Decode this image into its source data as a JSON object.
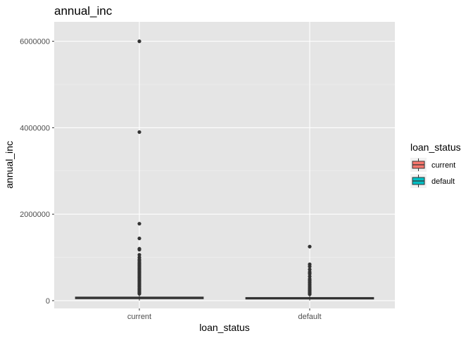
{
  "chart_data": {
    "type": "boxplot",
    "title": "annual_inc",
    "xlabel": "loan_status",
    "ylabel": "annual_inc",
    "categories": [
      "current",
      "default"
    ],
    "ylim": [
      -180000,
      6450000
    ],
    "yticks": [
      0,
      2000000,
      4000000,
      6000000
    ],
    "ytick_labels": [
      "0",
      "2000000",
      "4000000",
      "6000000"
    ],
    "grid": true,
    "legend": {
      "title": "loan_status",
      "position": "right",
      "entries": [
        "current",
        "default"
      ]
    },
    "series": [
      {
        "name": "current",
        "color": "#F8766D",
        "box": {
          "q1": 45000,
          "median": 62000,
          "q3": 82000,
          "lower_whisker": 4000,
          "upper_whisker": 140000
        },
        "outliers": [
          6000000,
          3900000,
          1780000,
          1440000,
          1200000,
          1180000,
          1060000,
          1000000,
          950000,
          920000,
          880000,
          850000,
          820000,
          790000,
          760000,
          730000,
          700000,
          670000,
          640000,
          610000,
          580000,
          550000,
          520000,
          490000,
          460000,
          430000,
          400000,
          370000,
          340000,
          310000,
          280000,
          250000,
          220000,
          190000,
          160000
        ]
      },
      {
        "name": "default",
        "color": "#00BFC4",
        "box": {
          "q1": 38000,
          "median": 52000,
          "q3": 72000,
          "lower_whisker": 4000,
          "upper_whisker": 120000
        },
        "outliers": [
          1250000,
          840000,
          790000,
          720000,
          660000,
          620000,
          560000,
          500000,
          460000,
          420000,
          380000,
          340000,
          300000,
          270000,
          240000,
          210000,
          180000,
          150000
        ]
      }
    ]
  }
}
